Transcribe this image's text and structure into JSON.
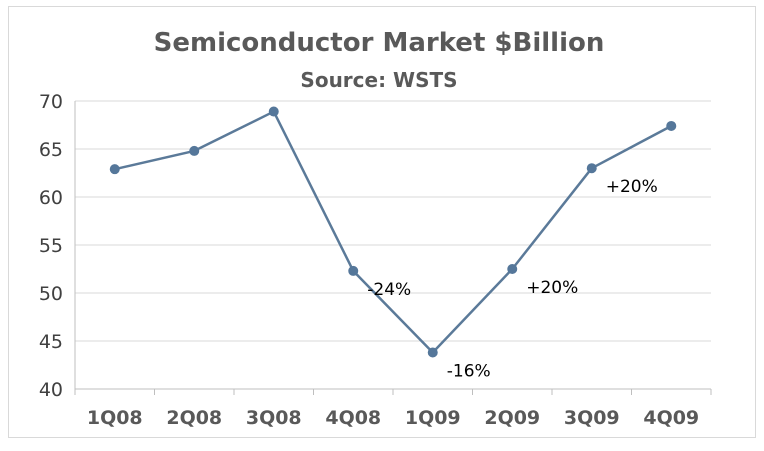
{
  "chart_data": {
    "type": "line",
    "title": "Semiconductor Market $Billion",
    "subtitle": "Source: WSTS",
    "xlabel": "",
    "ylabel": "",
    "categories": [
      "1Q08",
      "2Q08",
      "3Q08",
      "4Q08",
      "1Q09",
      "2Q09",
      "3Q09",
      "4Q09"
    ],
    "series": [
      {
        "values": [
          62.9,
          64.8,
          68.9,
          52.3,
          43.8,
          52.5,
          63.0,
          67.4
        ]
      }
    ],
    "ylim": [
      40,
      70
    ],
    "yticks": [
      40,
      45,
      50,
      55,
      60,
      65,
      70
    ],
    "grid": true,
    "legend": "none",
    "annotations": [
      {
        "index": 3,
        "text": "-24%"
      },
      {
        "index": 4,
        "text": "-16%"
      },
      {
        "index": 5,
        "text": "+20%"
      },
      {
        "index": 6,
        "text": "+20%"
      }
    ],
    "colors": {
      "line": "#5b7a99",
      "marker": "#55779a",
      "grid": "#d9d9d9",
      "axis": "#bfbfbf"
    }
  }
}
